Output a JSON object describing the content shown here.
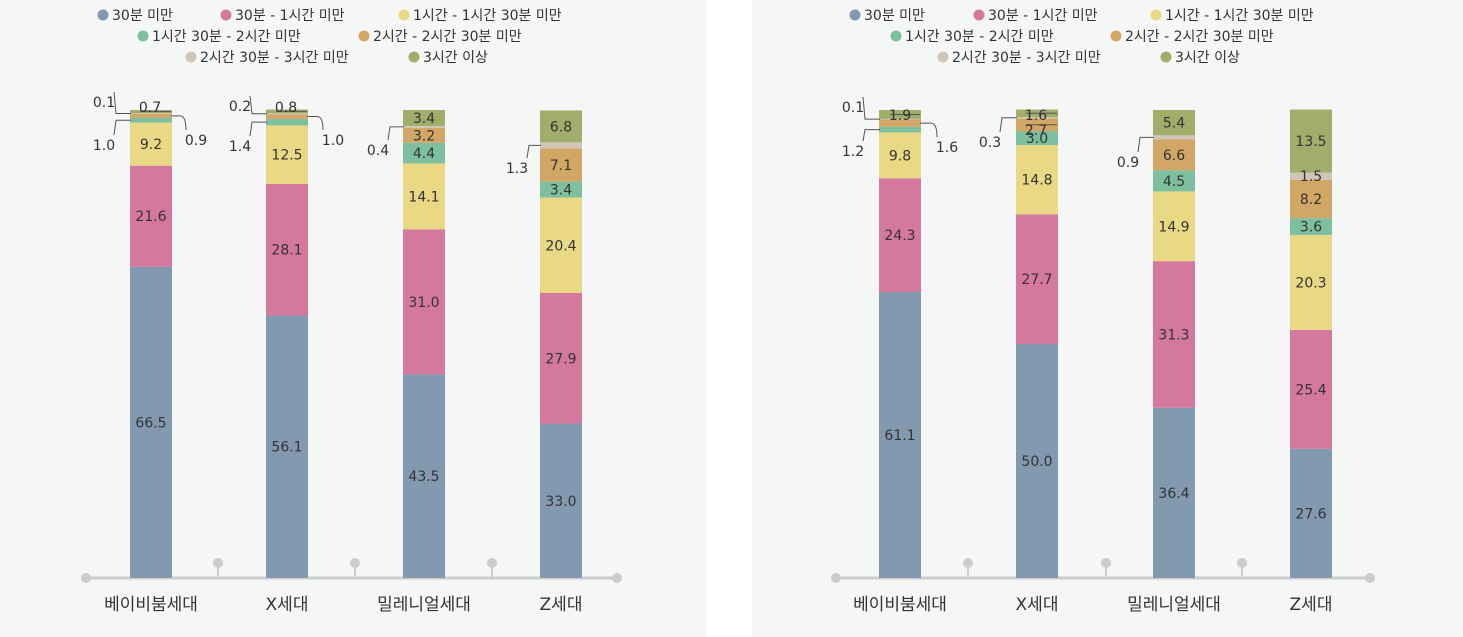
{
  "colors": {
    "30m": "#8399b0",
    "30m_1h": "#d5789d",
    "1h_1h30": "#ead984",
    "1h30_2h": "#7ebf9f",
    "2h_2h30": "#d2a665",
    "2h30_3h": "#cfc6b7",
    "3h": "#a1ad6a",
    "axis": "#cccccc"
  },
  "legend": [
    {
      "key": "30m",
      "label": "30분 미만"
    },
    {
      "key": "30m_1h",
      "label": "30분 - 1시간 미만"
    },
    {
      "key": "1h_1h30",
      "label": "1시간 - 1시간 30분 미만"
    },
    {
      "key": "1h30_2h",
      "label": "1시간 30분 - 2시간 미만"
    },
    {
      "key": "2h_2h30",
      "label": "2시간 - 2시간 30분 미만"
    },
    {
      "key": "2h30_3h",
      "label": "2시간 30분 - 3시간 미만"
    },
    {
      "key": "3h",
      "label": "3시간 이상"
    }
  ],
  "chart_data": [
    {
      "type": "bar",
      "stacked": true,
      "categories": [
        "베이비붐세대",
        "X세대",
        "밀레니얼세대",
        "Z세대"
      ],
      "series": [
        {
          "name": "30분 미만",
          "values": [
            66.5,
            56.1,
            43.5,
            33.0
          ]
        },
        {
          "name": "30분 - 1시간 미만",
          "values": [
            21.6,
            28.1,
            31.0,
            27.9
          ]
        },
        {
          "name": "1시간 - 1시간 30분 미만",
          "values": [
            9.2,
            12.5,
            14.1,
            20.4
          ]
        },
        {
          "name": "1시간 30분 - 2시간 미만",
          "values": [
            1.0,
            1.4,
            4.4,
            3.4
          ]
        },
        {
          "name": "2시간 - 2시간 30분 미만",
          "values": [
            0.9,
            1.0,
            3.2,
            7.1
          ]
        },
        {
          "name": "2시간 30분 - 3시간 미만",
          "values": [
            0.1,
            0.2,
            0.4,
            1.3
          ]
        },
        {
          "name": "3시간 이상",
          "values": [
            0.7,
            0.8,
            3.4,
            6.8
          ]
        }
      ],
      "ylim": [
        0,
        100
      ],
      "legend_position": "top"
    },
    {
      "type": "bar",
      "stacked": true,
      "categories": [
        "베이비붐세대",
        "X세대",
        "밀레니얼세대",
        "Z세대"
      ],
      "series": [
        {
          "name": "30분 미만",
          "values": [
            61.1,
            50.0,
            36.4,
            27.6
          ]
        },
        {
          "name": "30분 - 1시간 미만",
          "values": [
            24.3,
            27.7,
            31.3,
            25.4
          ]
        },
        {
          "name": "1시간 - 1시간 30분 미만",
          "values": [
            9.8,
            14.8,
            14.9,
            20.3
          ]
        },
        {
          "name": "1시간 30분 - 2시간 미만",
          "values": [
            1.2,
            3.0,
            4.5,
            3.6
          ]
        },
        {
          "name": "2시간 - 2시간 30분 미만",
          "values": [
            1.6,
            2.7,
            6.6,
            8.2
          ]
        },
        {
          "name": "2시간 30분 - 3시간 미만",
          "values": [
            0.1,
            0.3,
            0.9,
            1.5
          ]
        },
        {
          "name": "3시간 이상",
          "values": [
            1.9,
            1.6,
            5.4,
            13.5
          ]
        }
      ],
      "ylim": [
        0,
        100
      ],
      "legend_position": "top"
    }
  ]
}
